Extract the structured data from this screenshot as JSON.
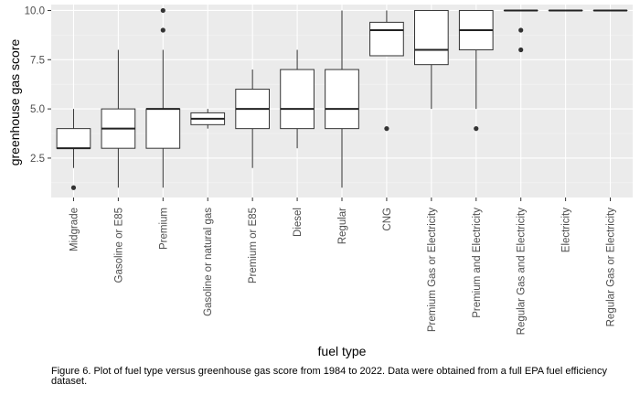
{
  "caption": "Figure 6. Plot of fuel type versus greenhouse gas score from 1984 to 2022. Data were obtained from a full EPA fuel efficiency dataset.",
  "chart_data": {
    "type": "boxplot",
    "xlabel": "fuel type",
    "ylabel": "greenhouse gas score",
    "ylim": [
      0.5,
      10.3
    ],
    "yticks": [
      2.5,
      5.0,
      7.5,
      10.0
    ],
    "ytick_labels": [
      "2.5",
      "5.0",
      "7.5",
      "10.0"
    ],
    "grid": true,
    "panel_color": "#ebebeb",
    "categories": [
      "Midgrade",
      "Gasoline or E85",
      "Premium",
      "Gasoline or natural gas",
      "Premium or E85",
      "Diesel",
      "Regular",
      "CNG",
      "Premium Gas or Electricity",
      "Premium and Electricity",
      "Regular Gas and Electricity",
      "Electricity",
      "Regular Gas or Electricity"
    ],
    "boxes": [
      {
        "min": 2,
        "q1": 3,
        "median": 3,
        "q3": 4,
        "max": 5,
        "outliers": [
          1
        ]
      },
      {
        "min": 1,
        "q1": 3,
        "median": 4,
        "q3": 5,
        "max": 8,
        "outliers": []
      },
      {
        "min": 1,
        "q1": 3,
        "median": 5,
        "q3": 5,
        "max": 8,
        "outliers": [
          9,
          10
        ]
      },
      {
        "min": 4,
        "q1": 4.2,
        "median": 4.5,
        "q3": 4.8,
        "max": 5,
        "outliers": []
      },
      {
        "min": 2,
        "q1": 4,
        "median": 5,
        "q3": 6,
        "max": 7,
        "outliers": []
      },
      {
        "min": 3,
        "q1": 4,
        "median": 5,
        "q3": 7,
        "max": 8,
        "outliers": []
      },
      {
        "min": 1,
        "q1": 4,
        "median": 5,
        "q3": 7,
        "max": 10,
        "outliers": []
      },
      {
        "min": 7.7,
        "q1": 7.7,
        "median": 9,
        "q3": 9.4,
        "max": 10,
        "outliers": [
          4
        ]
      },
      {
        "min": 5,
        "q1": 7.25,
        "median": 8,
        "q3": 10,
        "max": 10,
        "outliers": []
      },
      {
        "min": 5,
        "q1": 8,
        "median": 9,
        "q3": 10,
        "max": 10,
        "outliers": [
          4
        ]
      },
      {
        "min": 10,
        "q1": 10,
        "median": 10,
        "q3": 10,
        "max": 10,
        "outliers": [
          9,
          8
        ]
      },
      {
        "min": 10,
        "q1": 10,
        "median": 10,
        "q3": 10,
        "max": 10,
        "outliers": []
      },
      {
        "min": 10,
        "q1": 10,
        "median": 10,
        "q3": 10,
        "max": 10,
        "outliers": []
      }
    ]
  }
}
